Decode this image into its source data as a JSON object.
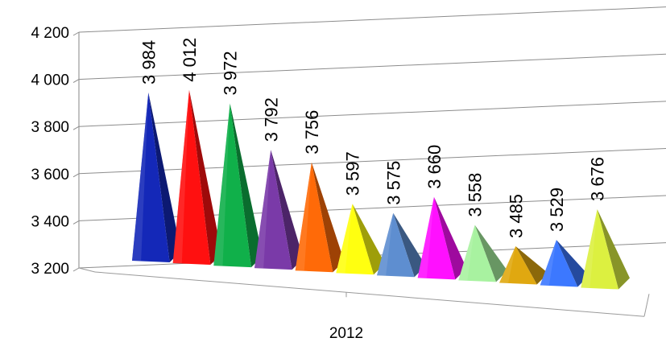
{
  "chart_data": {
    "type": "bar",
    "style": "3d-pyramid",
    "categories": [
      "2012"
    ],
    "series": [
      {
        "value": 3984,
        "label": "3 984",
        "color": "#1428b8"
      },
      {
        "value": 4012,
        "label": "4 012",
        "color": "#ff1010"
      },
      {
        "value": 3972,
        "label": "3 972",
        "color": "#10b04a"
      },
      {
        "value": 3792,
        "label": "3 792",
        "color": "#7a3aa8"
      },
      {
        "value": 3756,
        "label": "3 756",
        "color": "#ff6a08"
      },
      {
        "value": 3597,
        "label": "3 597",
        "color": "#ffff10"
      },
      {
        "value": 3575,
        "label": "3 575",
        "color": "#5e8ed0"
      },
      {
        "value": 3660,
        "label": "3 660",
        "color": "#ff10ff"
      },
      {
        "value": 3558,
        "label": "3 558",
        "color": "#a8f2a0"
      },
      {
        "value": 3485,
        "label": "3 485",
        "color": "#e0a810"
      },
      {
        "value": 3529,
        "label": "3 529",
        "color": "#3c78ff"
      },
      {
        "value": 3676,
        "label": "3 676",
        "color": "#dcf040"
      }
    ],
    "yticks": [
      "3 200",
      "3 400",
      "3 600",
      "3 800",
      "4 000",
      "4 200"
    ],
    "ylim": [
      3200,
      4200
    ],
    "title": "",
    "xlabel": "",
    "ylabel": "",
    "grid": true,
    "legend": "none"
  }
}
